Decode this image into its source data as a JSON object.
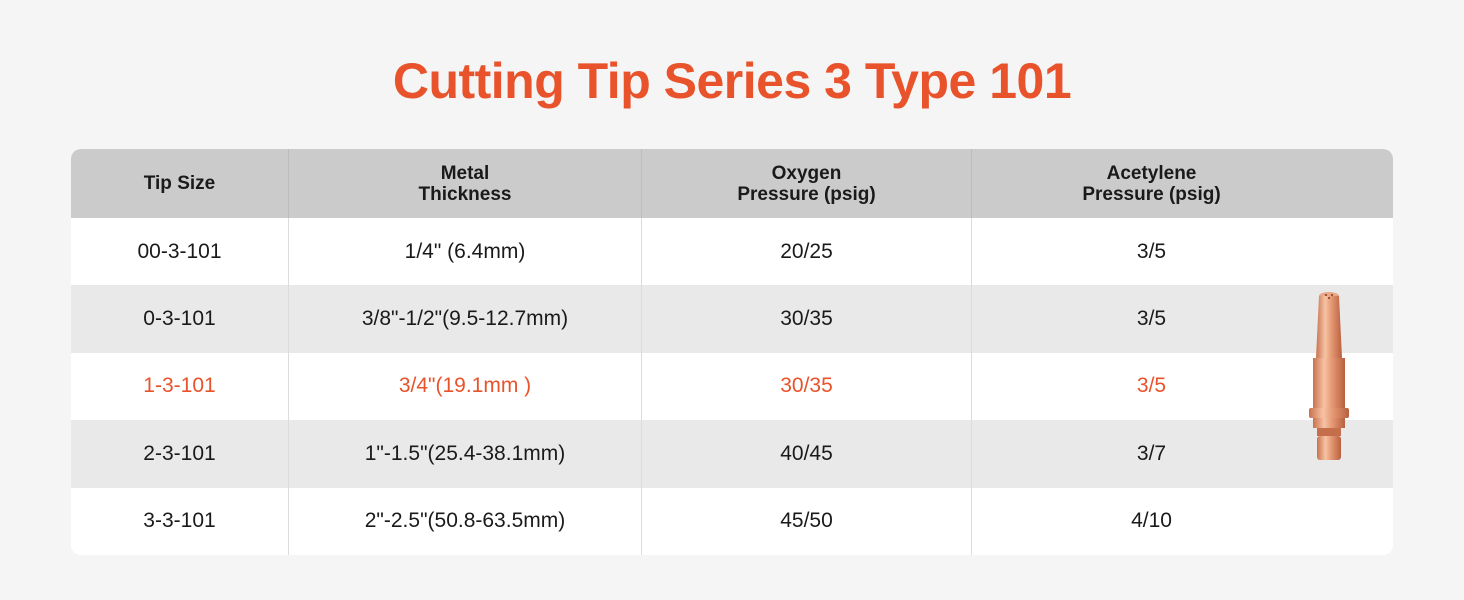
{
  "title": "Cutting Tip Series 3 Type 101",
  "table": {
    "header": [
      [
        "Tip Size"
      ],
      [
        "Metal",
        "Thickness"
      ],
      [
        "Oxygen",
        "Pressure (psig)"
      ],
      [
        "Acetylene",
        "Pressure (psig)"
      ]
    ],
    "rows": [
      [
        "00-3-101",
        "1/4\" (6.4mm)",
        "20/25",
        "3/5"
      ],
      [
        "0-3-101",
        "3/8\"-1/2\"(9.5-12.7mm)",
        "30/35",
        "3/5"
      ],
      [
        "1-3-101",
        "3/4\"(19.1mm )",
        "30/35",
        "3/5"
      ],
      [
        "2-3-101",
        "1\"-1.5\"(25.4-38.1mm)",
        "40/45",
        "3/7"
      ],
      [
        "3-3-101",
        "2\"-2.5\"(50.8-63.5mm)",
        "45/50",
        "4/10"
      ]
    ],
    "highlight_row": 2,
    "highlight_color": "#e8532b"
  }
}
